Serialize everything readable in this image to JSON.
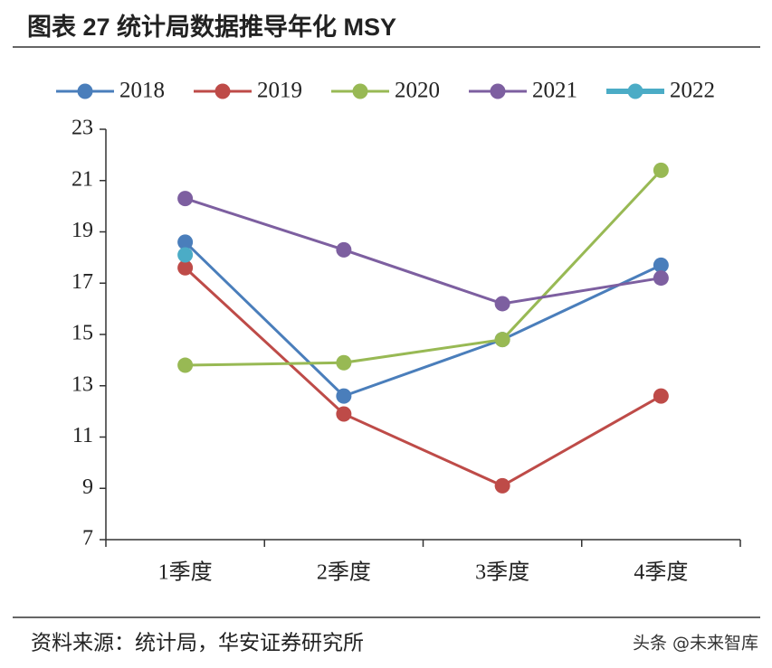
{
  "chart_data": {
    "type": "line",
    "title": "图表 27 统计局数据推导年化 MSY",
    "categories": [
      "1季度",
      "2季度",
      "3季度",
      "4季度"
    ],
    "series": [
      {
        "name": "2018",
        "color": "#4a7ebb",
        "values": [
          18.6,
          12.6,
          14.8,
          17.7
        ]
      },
      {
        "name": "2019",
        "color": "#be4b48",
        "values": [
          17.6,
          11.9,
          9.1,
          12.6
        ]
      },
      {
        "name": "2020",
        "color": "#98b954",
        "values": [
          13.8,
          13.9,
          14.8,
          21.4
        ]
      },
      {
        "name": "2021",
        "color": "#7d5fa0",
        "values": [
          20.3,
          18.3,
          16.2,
          17.2
        ]
      },
      {
        "name": "2022",
        "color": "#4bacc6",
        "values": [
          18.1,
          null,
          null,
          null
        ]
      }
    ],
    "ylim": [
      7,
      23
    ],
    "yticks": [
      7,
      9,
      11,
      13,
      15,
      17,
      19,
      21,
      23
    ],
    "source": "资料来源：统计局，华安证券研究所",
    "watermark": "头条 @未来智库"
  }
}
